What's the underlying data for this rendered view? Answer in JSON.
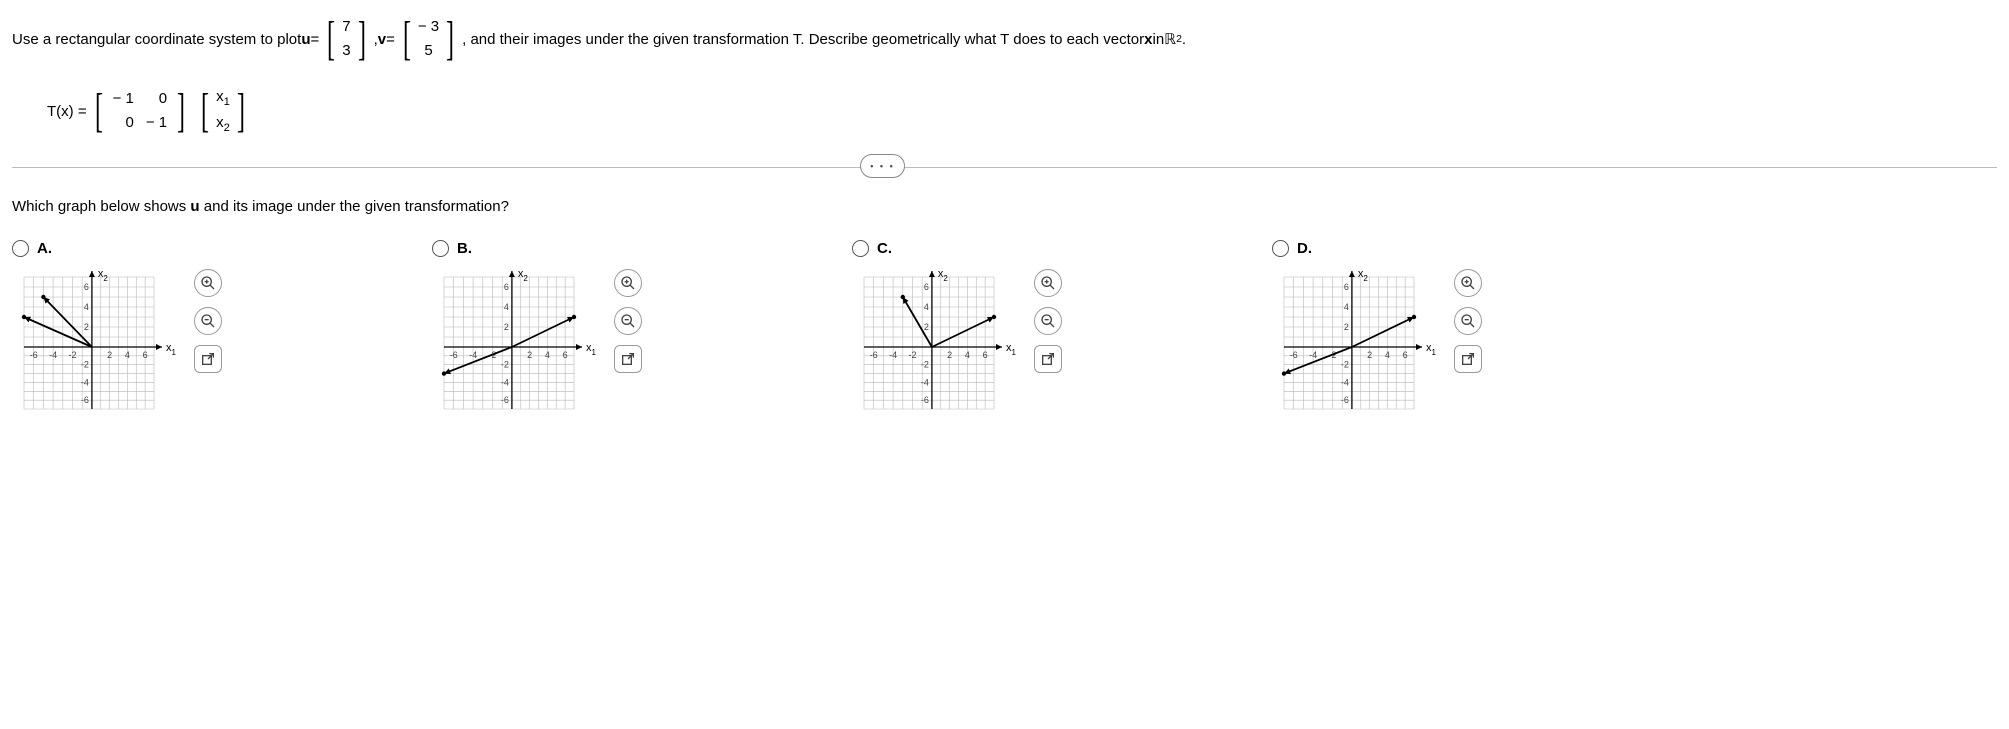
{
  "problem": {
    "text_prefix": "Use a rectangular coordinate system to plot ",
    "u_label": "u",
    "equals": " = ",
    "u_vector": [
      "7",
      "3"
    ],
    "v_label": "v",
    "v_vector": [
      "− 3",
      "5"
    ],
    "text_suffix": ", and their images under the given transformation T. Describe geometrically what T does to each vector ",
    "x_label": "x",
    "in_text": " in ",
    "space": "ℝ",
    "space_exp": "2",
    "period": "."
  },
  "transformation": {
    "lhs": "T(x) = ",
    "matrix": [
      [
        "− 1",
        "0"
      ],
      [
        "0",
        "− 1"
      ]
    ],
    "vector": [
      "x",
      "x"
    ],
    "vector_subs": [
      "1",
      "2"
    ]
  },
  "question": "Which graph below shows u and its image under the given transformation?",
  "options": {
    "labels": [
      "A.",
      "B.",
      "C.",
      "D."
    ],
    "axis_x": "x",
    "axis_x_sub": "1",
    "axis_y": "x",
    "axis_y_sub": "2",
    "ticks_pos": [
      "2",
      "4",
      "6"
    ],
    "ticks_neg": [
      "-2",
      "-4",
      "-6"
    ],
    "range": 7,
    "colors": {
      "grid": "#b8b8b8",
      "axis": "#000000",
      "vector": "#000000",
      "accent": "#0070e0"
    },
    "graphs": {
      "A": {
        "arrows": [
          {
            "from": [
              0,
              0
            ],
            "to": [
              -7,
              3
            ]
          },
          {
            "from": [
              0,
              0
            ],
            "to": [
              -5,
              5
            ]
          }
        ]
      },
      "B": {
        "arrows": [
          {
            "from": [
              0,
              0
            ],
            "to": [
              7,
              3
            ]
          },
          {
            "from": [
              0,
              0
            ],
            "to": [
              -7,
              -3
            ]
          }
        ]
      },
      "C": {
        "arrows": [
          {
            "from": [
              0,
              0
            ],
            "to": [
              7,
              3
            ]
          },
          {
            "from": [
              0,
              0
            ],
            "to": [
              -3,
              5
            ]
          }
        ]
      },
      "D": {
        "arrows": [
          {
            "from": [
              0,
              0
            ],
            "to": [
              7,
              3
            ]
          },
          {
            "from": [
              0,
              0
            ],
            "to": [
              -7,
              -3
            ]
          }
        ]
      }
    }
  },
  "icons": {
    "zoom_in": "zoom-in-icon",
    "zoom_out": "zoom-out-icon",
    "open": "open-new-icon"
  },
  "dots": "• • •"
}
